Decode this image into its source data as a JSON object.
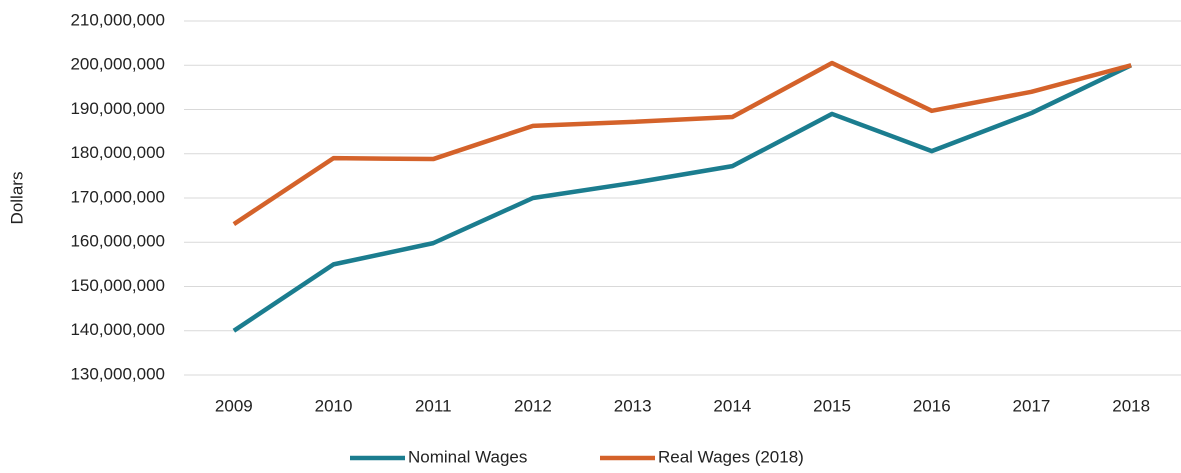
{
  "chart_data": {
    "type": "line",
    "y_label": "Dollars",
    "categories": [
      "2009",
      "2010",
      "2011",
      "2012",
      "2013",
      "2014",
      "2015",
      "2016",
      "2017",
      "2018"
    ],
    "series": [
      {
        "name": "Nominal Wages",
        "color": "#1b7d8f",
        "values": [
          140000000,
          155000000,
          159800000,
          170000000,
          173400000,
          177200000,
          189000000,
          180600000,
          189200000,
          200000000
        ]
      },
      {
        "name": "Real Wages (2018)",
        "color": "#d4622a",
        "values": [
          164100000,
          179000000,
          178800000,
          186300000,
          187200000,
          188300000,
          200500000,
          189700000,
          194000000,
          200000000
        ]
      }
    ],
    "ylim": [
      130000000,
      210000000
    ],
    "yticks": [
      {
        "value": 130000000,
        "label": "130,000,000"
      },
      {
        "value": 140000000,
        "label": "140,000,000"
      },
      {
        "value": 150000000,
        "label": "150,000,000"
      },
      {
        "value": 160000000,
        "label": "160,000,000"
      },
      {
        "value": 170000000,
        "label": "170,000,000"
      },
      {
        "value": 180000000,
        "label": "180,000,000"
      },
      {
        "value": 190000000,
        "label": "190,000,000"
      },
      {
        "value": 200000000,
        "label": "200,000,000"
      },
      {
        "value": 210000000,
        "label": "210,000,000"
      }
    ],
    "grid": true,
    "legend": "bottom"
  }
}
